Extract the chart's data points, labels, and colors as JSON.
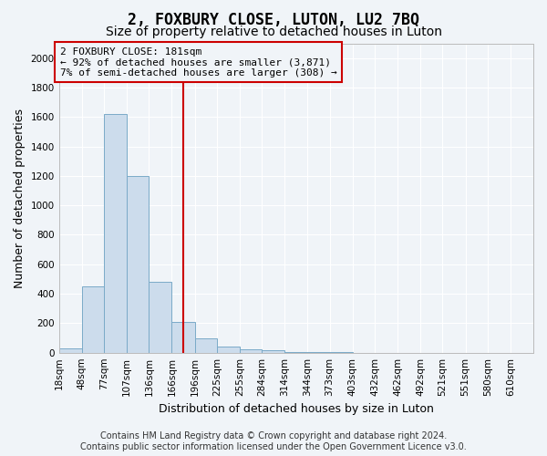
{
  "title": "2, FOXBURY CLOSE, LUTON, LU2 7BQ",
  "subtitle": "Size of property relative to detached houses in Luton",
  "xlabel": "Distribution of detached houses by size in Luton",
  "ylabel": "Number of detached properties",
  "bin_labels": [
    "18sqm",
    "48sqm",
    "77sqm",
    "107sqm",
    "136sqm",
    "166sqm",
    "196sqm",
    "225sqm",
    "255sqm",
    "284sqm",
    "314sqm",
    "344sqm",
    "373sqm",
    "403sqm",
    "432sqm",
    "462sqm",
    "492sqm",
    "521sqm",
    "551sqm",
    "580sqm",
    "610sqm"
  ],
  "bin_edges": [
    18,
    48,
    77,
    107,
    136,
    166,
    196,
    225,
    255,
    284,
    314,
    344,
    373,
    403,
    432,
    462,
    492,
    521,
    551,
    580,
    610,
    640
  ],
  "bar_heights": [
    30,
    450,
    1620,
    1200,
    480,
    210,
    100,
    40,
    25,
    15,
    7,
    3,
    2,
    1,
    1,
    0,
    0,
    0,
    0,
    0,
    0
  ],
  "bar_color": "#ccdcec",
  "bar_edge_color": "#7aaac8",
  "property_size": 181,
  "annotation_line1": "2 FOXBURY CLOSE: 181sqm",
  "annotation_line2": "← 92% of detached houses are smaller (3,871)",
  "annotation_line3": "7% of semi-detached houses are larger (308) →",
  "vline_color": "#cc0000",
  "annotation_box_edge_color": "#cc0000",
  "ylim": [
    0,
    2100
  ],
  "yticks": [
    0,
    200,
    400,
    600,
    800,
    1000,
    1200,
    1400,
    1600,
    1800,
    2000
  ],
  "footer_line1": "Contains HM Land Registry data © Crown copyright and database right 2024.",
  "footer_line2": "Contains public sector information licensed under the Open Government Licence v3.0.",
  "background_color": "#f0f4f8",
  "grid_color": "#ffffff",
  "title_fontsize": 12,
  "subtitle_fontsize": 10,
  "axis_label_fontsize": 9,
  "tick_fontsize": 7.5,
  "footer_fontsize": 7,
  "annotation_fontsize": 8
}
